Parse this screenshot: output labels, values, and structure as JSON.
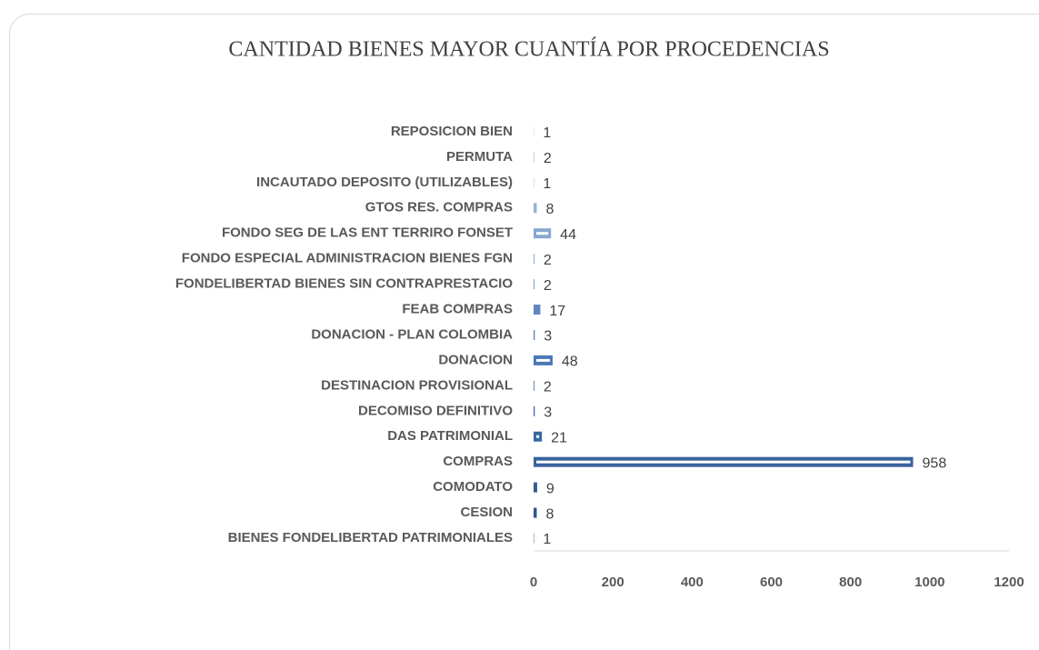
{
  "chart_data": {
    "type": "hbar",
    "title": "CANTIDAD BIENES MAYOR CUANTÍA POR PROCEDENCIAS",
    "categories": [
      "BIENES FONDELIBERTAD PATRIMONIALES",
      "CESION",
      "COMODATO",
      "COMPRAS",
      "DAS PATRIMONIAL",
      "DECOMISO DEFINITIVO",
      "DESTINACION PROVISIONAL",
      "DONACION",
      "DONACION - PLAN COLOMBIA",
      "FEAB COMPRAS",
      "FONDELIBERTAD BIENES SIN CONTRAPRESTACIO",
      "FONDO ESPECIAL ADMINISTRACION BIENES FGN",
      "FONDO SEG DE LAS ENT TERRIRO FONSET",
      "GTOS RES. COMPRAS",
      "INCAUTADO DEPOSITO (UTILIZABLES)",
      "PERMUTA",
      "REPOSICION BIEN"
    ],
    "values": [
      1,
      8,
      9,
      958,
      21,
      3,
      2,
      48,
      3,
      17,
      2,
      2,
      44,
      8,
      1,
      2,
      1
    ],
    "colors": [
      "#2b5288",
      "#2f578f",
      "#335c95",
      "#38629c",
      "#3c67a2",
      "#416ca9",
      "#4672b0",
      "#4b78b6",
      "#5580bc",
      "#6088c0",
      "#6c92c5",
      "#7a9ccb",
      "#88a6d0",
      "#97b1d6",
      "#a7bddc",
      "#b6c8e2",
      "#c5d3e8"
    ],
    "xlim": [
      0,
      1200
    ],
    "xticks": [
      0,
      200,
      400,
      600,
      800,
      1000,
      1200
    ],
    "grid": false
  }
}
